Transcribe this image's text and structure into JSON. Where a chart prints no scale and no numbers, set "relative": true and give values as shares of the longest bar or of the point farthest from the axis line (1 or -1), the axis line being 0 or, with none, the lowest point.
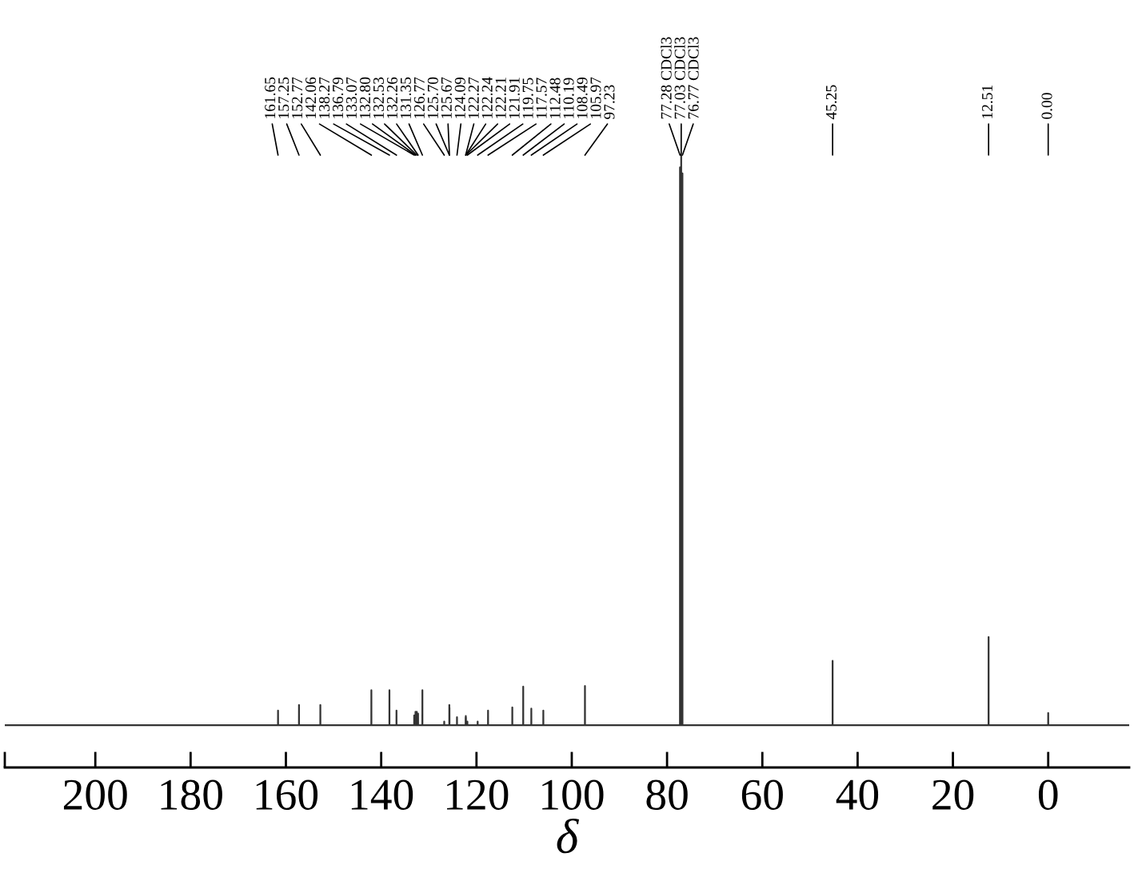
{
  "chart_data": {
    "type": "line",
    "relative": true,
    "xlabel": "δ",
    "color": "#333333",
    "xlim": [
      219,
      -17
    ],
    "xticks": [
      {
        "value": 219,
        "label": null
      },
      200,
      180,
      160,
      140,
      120,
      100,
      80,
      60,
      40,
      20,
      0
    ],
    "x": [
      219,
      161.66,
      161.65,
      161.64,
      157.26,
      157.25,
      157.24,
      152.78,
      152.77,
      152.76,
      142.07,
      142.06,
      142.05,
      138.28,
      138.27,
      138.26,
      136.8,
      136.79,
      136.78,
      133.08,
      133.07,
      133.06,
      132.81,
      132.8,
      132.79,
      132.54,
      132.53,
      132.52,
      132.27,
      132.26,
      132.25,
      131.36,
      131.35,
      131.34,
      126.78,
      126.77,
      126.76,
      125.71,
      125.7,
      125.69,
      125.68,
      125.67,
      125.66,
      124.1,
      124.09,
      124.08,
      122.28,
      122.27,
      122.26,
      122.25,
      122.24,
      122.23,
      122.22,
      122.21,
      122.2,
      121.92,
      121.91,
      121.9,
      119.76,
      119.75,
      119.74,
      117.58,
      117.57,
      117.56,
      112.49,
      112.48,
      112.47,
      110.2,
      110.19,
      110.18,
      108.5,
      108.49,
      108.48,
      105.98,
      105.97,
      105.96,
      97.24,
      97.23,
      97.22,
      77.29,
      77.28,
      77.27,
      77.04,
      77.03,
      77.02,
      76.78,
      76.77,
      76.76,
      45.26,
      45.25,
      45.24,
      12.52,
      12.51,
      12.5,
      0.01,
      0.0,
      -0.01,
      -17
    ],
    "values": [
      0.069,
      0.069,
      0.093,
      0.069,
      0.069,
      0.102,
      0.069,
      0.069,
      0.102,
      0.069,
      0.069,
      0.126,
      0.069,
      0.069,
      0.126,
      0.069,
      0.069,
      0.093,
      0.069,
      0.069,
      0.085,
      0.069,
      0.069,
      0.091,
      0.069,
      0.069,
      0.091,
      0.069,
      0.069,
      0.088,
      0.069,
      0.069,
      0.126,
      0.069,
      0.069,
      0.075,
      0.069,
      0.069,
      0.102,
      0.069,
      0.069,
      0.098,
      0.069,
      0.069,
      0.082,
      0.069,
      0.069,
      0.082,
      0.069,
      0.069,
      0.084,
      0.069,
      0.069,
      0.082,
      0.069,
      0.069,
      0.075,
      0.069,
      0.069,
      0.075,
      0.069,
      0.069,
      0.093,
      0.069,
      0.069,
      0.098,
      0.069,
      0.069,
      0.132,
      0.069,
      0.069,
      0.096,
      0.069,
      0.069,
      0.093,
      0.069,
      0.069,
      0.133,
      0.069,
      0.069,
      0.98,
      0.069,
      0.069,
      1.0,
      0.069,
      0.069,
      0.97,
      0.069,
      0.069,
      0.174,
      0.069,
      0.069,
      0.213,
      0.069,
      0.069,
      0.089,
      0.069,
      0.069
    ],
    "annotations": [
      {
        "text": "161.65",
        "x": 161.65
      },
      {
        "text": "157.25",
        "x": 157.25
      },
      {
        "text": "152.77",
        "x": 152.77
      },
      {
        "text": "142.06",
        "x": 142.06
      },
      {
        "text": "138.27",
        "x": 138.27
      },
      {
        "text": "136.79",
        "x": 136.79
      },
      {
        "text": "133.07",
        "x": 133.07
      },
      {
        "text": "132.80",
        "x": 132.8
      },
      {
        "text": "132.53",
        "x": 132.53
      },
      {
        "text": "132.26",
        "x": 132.26
      },
      {
        "text": "131.35",
        "x": 131.35
      },
      {
        "text": "126.77",
        "x": 126.77
      },
      {
        "text": "125.70",
        "x": 125.7
      },
      {
        "text": "125.67",
        "x": 125.67
      },
      {
        "text": "124.09",
        "x": 124.09
      },
      {
        "text": "122.27",
        "x": 122.27
      },
      {
        "text": "122.24",
        "x": 122.24
      },
      {
        "text": "122.21",
        "x": 122.21
      },
      {
        "text": "121.91",
        "x": 121.91
      },
      {
        "text": "119.75",
        "x": 119.75
      },
      {
        "text": "117.57",
        "x": 117.57
      },
      {
        "text": "112.48",
        "x": 112.48
      },
      {
        "text": "110.19",
        "x": 110.19
      },
      {
        "text": "108.49",
        "x": 108.49
      },
      {
        "text": "105.97",
        "x": 105.97
      },
      {
        "text": "97.23",
        "x": 97.23
      },
      {
        "text": "77.28 CDCl3",
        "x": 77.28
      },
      {
        "text": "77.03 CDCl3",
        "x": 77.03
      },
      {
        "text": "76.77 CDCl3",
        "x": 76.77
      },
      {
        "text": "45.25",
        "x": 45.25
      },
      {
        "text": "12.51",
        "x": 12.51
      },
      {
        "text": "0.00",
        "x": 0.0
      }
    ]
  }
}
